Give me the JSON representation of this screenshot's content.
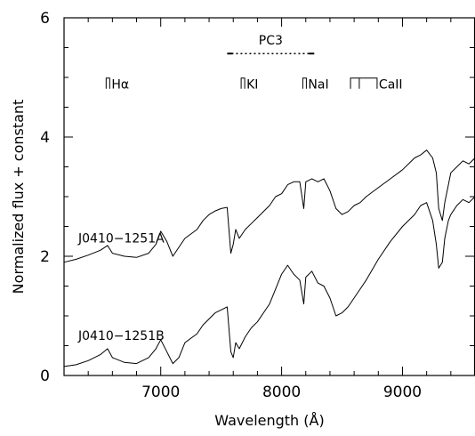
{
  "chart_data": {
    "type": "line",
    "title": "",
    "xlabel": "Wavelength (Å)",
    "ylabel": "Normalized flux + constant",
    "xlim": [
      6200,
      9600
    ],
    "ylim": [
      0,
      6
    ],
    "xticks": [
      7000,
      8000,
      9000
    ],
    "yticks": [
      0,
      2,
      4,
      6
    ],
    "grid": false,
    "series": [
      {
        "name": "J0410−1251A",
        "x": [
          6200,
          6300,
          6400,
          6500,
          6560,
          6600,
          6700,
          6800,
          6900,
          6960,
          7000,
          7050,
          7100,
          7150,
          7200,
          7300,
          7350,
          7400,
          7450,
          7500,
          7550,
          7580,
          7600,
          7620,
          7650,
          7700,
          7750,
          7800,
          7900,
          7950,
          8000,
          8050,
          8100,
          8150,
          8183,
          8200,
          8250,
          8300,
          8350,
          8400,
          8450,
          8500,
          8550,
          8600,
          8650,
          8700,
          8800,
          8900,
          9000,
          9100,
          9150,
          9200,
          9250,
          9280,
          9300,
          9330,
          9350,
          9380,
          9400,
          9450,
          9500,
          9550,
          9600
        ],
        "y": [
          1.9,
          1.95,
          2.02,
          2.1,
          2.18,
          2.05,
          2.0,
          1.98,
          2.05,
          2.2,
          2.42,
          2.25,
          2.0,
          2.15,
          2.3,
          2.45,
          2.6,
          2.7,
          2.76,
          2.8,
          2.82,
          2.05,
          2.2,
          2.45,
          2.3,
          2.45,
          2.55,
          2.65,
          2.85,
          3.0,
          3.05,
          3.2,
          3.25,
          3.25,
          2.8,
          3.25,
          3.3,
          3.25,
          3.3,
          3.1,
          2.8,
          2.7,
          2.75,
          2.85,
          2.9,
          3.0,
          3.15,
          3.3,
          3.45,
          3.65,
          3.7,
          3.78,
          3.65,
          3.4,
          2.8,
          2.6,
          2.9,
          3.2,
          3.4,
          3.5,
          3.6,
          3.55,
          3.65
        ]
      },
      {
        "name": "J0410−1251B",
        "x": [
          6200,
          6300,
          6400,
          6500,
          6560,
          6600,
          6700,
          6800,
          6900,
          6960,
          7000,
          7050,
          7100,
          7150,
          7200,
          7300,
          7350,
          7400,
          7450,
          7500,
          7550,
          7580,
          7600,
          7620,
          7650,
          7700,
          7750,
          7800,
          7900,
          7950,
          8000,
          8050,
          8100,
          8150,
          8183,
          8200,
          8250,
          8300,
          8350,
          8400,
          8450,
          8500,
          8550,
          8600,
          8650,
          8700,
          8800,
          8900,
          9000,
          9100,
          9150,
          9200,
          9250,
          9280,
          9300,
          9330,
          9350,
          9380,
          9400,
          9450,
          9500,
          9550,
          9600
        ],
        "y": [
          0.15,
          0.18,
          0.25,
          0.35,
          0.45,
          0.3,
          0.22,
          0.2,
          0.3,
          0.45,
          0.6,
          0.4,
          0.2,
          0.3,
          0.55,
          0.7,
          0.85,
          0.95,
          1.05,
          1.1,
          1.15,
          0.4,
          0.3,
          0.55,
          0.45,
          0.65,
          0.8,
          0.9,
          1.2,
          1.45,
          1.7,
          1.85,
          1.7,
          1.6,
          1.2,
          1.65,
          1.75,
          1.55,
          1.5,
          1.3,
          1.0,
          1.05,
          1.15,
          1.3,
          1.45,
          1.6,
          1.95,
          2.25,
          2.5,
          2.7,
          2.85,
          2.9,
          2.6,
          2.2,
          1.8,
          1.9,
          2.3,
          2.6,
          2.7,
          2.85,
          2.95,
          2.9,
          3.0
        ]
      }
    ],
    "annotations": {
      "pc3": {
        "label": "PC3",
        "x_range": [
          7550,
          8270
        ],
        "y": 5.4
      },
      "features": [
        {
          "label": "Hα",
          "x": 6563,
          "y": 4.9
        },
        {
          "label": "KI",
          "x": 7680,
          "y": 4.9
        },
        {
          "label": "NaI",
          "x": 8190,
          "y": 4.9
        },
        {
          "label": "CaII",
          "x": 8570,
          "y": 4.9,
          "x_end": 8790
        }
      ]
    }
  }
}
